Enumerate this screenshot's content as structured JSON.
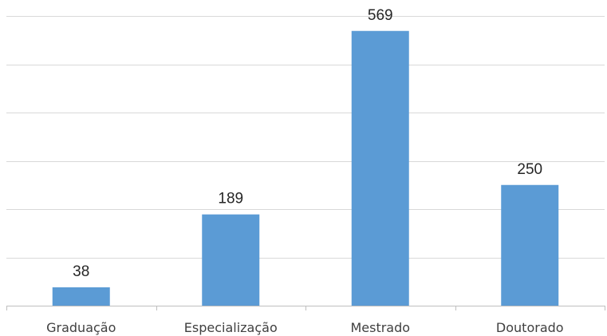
{
  "chart_data": {
    "type": "bar",
    "categories": [
      "Graduação",
      "Especialização",
      "Mestrado",
      "Doutorado"
    ],
    "values": [
      38,
      189,
      569,
      250
    ],
    "data_labels": [
      "38",
      "189",
      "569",
      "250"
    ],
    "ylim": [
      0,
      600
    ],
    "grid": true,
    "legend": "none",
    "colors": {
      "bar": "#5b9bd5",
      "grid": "#d9d9d9",
      "axis": "#bfbfbf",
      "label": "#262626",
      "category": "#404040"
    }
  }
}
